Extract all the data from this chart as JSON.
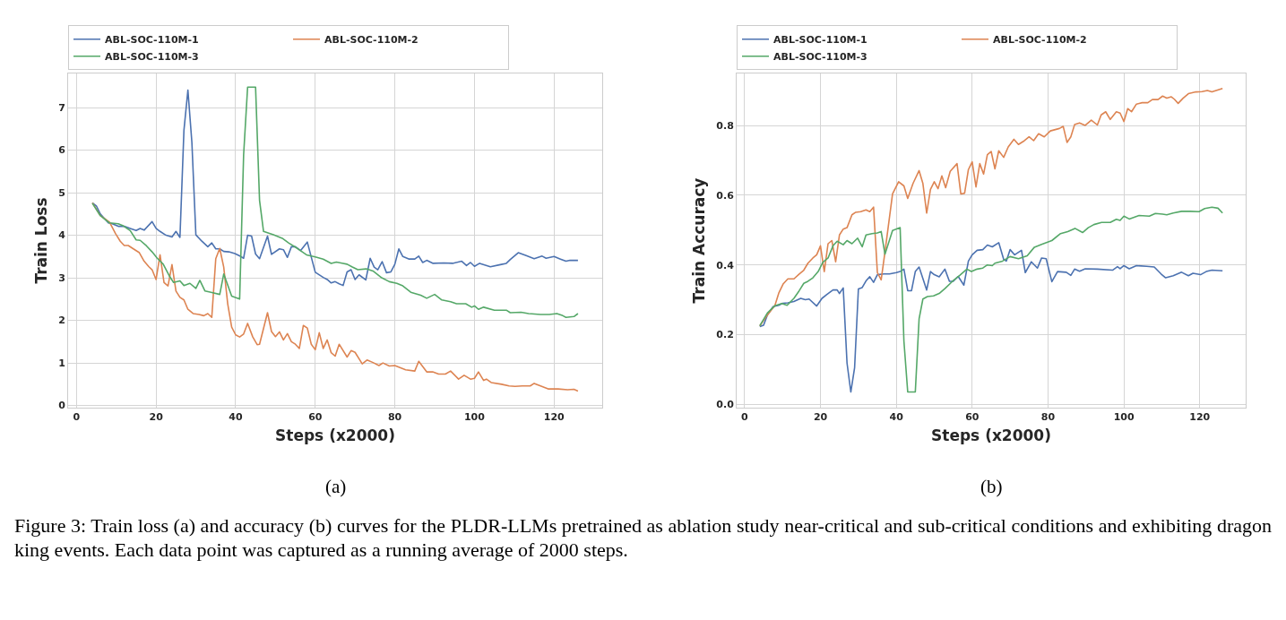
{
  "chart_data": [
    {
      "type": "line",
      "xlabel": "Steps (x2000)",
      "ylabel": "Train Loss",
      "xlim": [
        -2.1,
        132.1
      ],
      "ylim": [
        -0.05,
        7.8
      ],
      "xticks": [
        0,
        20,
        40,
        60,
        80,
        100,
        120
      ],
      "yticks": [
        0,
        1,
        2,
        3,
        4,
        5,
        6,
        7
      ],
      "grid": true,
      "legend": "top left",
      "line_style": "solid",
      "marker": "none",
      "annotations": [
        "(a)",
        "Figure 3: Train loss (a) and accuracy (b) curves for the PLDR-LLMs pretrained as ablation study near-critical and sub-critical conditions and exhibiting dragon king events. Each data point was captured as a running average of 2000 steps."
      ],
      "series": [
        {
          "name": "ABL-SOC-110M-1",
          "color": "#4c72b0",
          "x": [
            4,
            5,
            6,
            8,
            9,
            10.5,
            12,
            13.5,
            15,
            16,
            17,
            19,
            20,
            21,
            22.5,
            24,
            25,
            26,
            27,
            28,
            29,
            30,
            31.5,
            33,
            34,
            35,
            36,
            37,
            38.3,
            39.8,
            41.3,
            42,
            43,
            44,
            45,
            46,
            48,
            49,
            51,
            52,
            53,
            54,
            55,
            56.3,
            58,
            60,
            62,
            63,
            64,
            65,
            66,
            67,
            68,
            69,
            70,
            71,
            72.7,
            73.8,
            74.8,
            75.7,
            76.8,
            77.9,
            79,
            80,
            81,
            82,
            83.6,
            85,
            86,
            87,
            88,
            89.6,
            92.3,
            94.5,
            96.8,
            98,
            99,
            100,
            101.3,
            104,
            106.5,
            108,
            109,
            111,
            113,
            115,
            117,
            118,
            120,
            121.6,
            123,
            124,
            126
          ],
          "values": [
            4.76,
            4.69,
            4.5,
            4.29,
            4.27,
            4.21,
            4.21,
            4.16,
            4.11,
            4.16,
            4.12,
            4.32,
            4.16,
            4.09,
            4.0,
            3.96,
            4.09,
            3.95,
            6.46,
            7.41,
            6.18,
            4.01,
            3.86,
            3.73,
            3.82,
            3.68,
            3.68,
            3.62,
            3.61,
            3.57,
            3.5,
            3.46,
            4.0,
            3.98,
            3.56,
            3.45,
            3.98,
            3.55,
            3.68,
            3.66,
            3.48,
            3.73,
            3.73,
            3.64,
            3.84,
            3.13,
            3.01,
            2.96,
            2.88,
            2.91,
            2.86,
            2.82,
            3.14,
            3.19,
            2.96,
            3.07,
            2.95,
            3.46,
            3.25,
            3.19,
            3.38,
            3.12,
            3.14,
            3.32,
            3.68,
            3.5,
            3.44,
            3.44,
            3.51,
            3.36,
            3.41,
            3.34,
            3.35,
            3.34,
            3.39,
            3.29,
            3.36,
            3.27,
            3.34,
            3.26,
            3.31,
            3.34,
            3.43,
            3.59,
            3.52,
            3.45,
            3.51,
            3.46,
            3.5,
            3.44,
            3.39,
            3.41,
            3.41
          ]
        },
        {
          "name": "ABL-SOC-110M-2",
          "color": "#dd8452",
          "x": [
            4,
            6,
            8.3,
            9.8,
            11,
            12,
            13,
            14.3,
            15.8,
            17,
            18.2,
            19,
            20,
            21,
            22,
            23,
            24,
            25,
            26,
            27,
            28,
            29.3,
            30.8,
            32,
            33,
            34,
            35,
            36,
            37,
            38,
            39,
            40,
            41,
            42,
            43,
            44.3,
            45.4,
            46,
            48,
            49,
            50,
            51,
            52,
            53,
            54,
            55,
            56,
            57,
            58,
            59,
            60,
            61,
            62,
            63,
            64,
            65,
            66,
            68,
            69,
            70,
            71.8,
            73,
            74.5,
            76,
            77,
            78.6,
            80,
            82.7,
            85,
            86,
            88,
            89.5,
            91,
            92.7,
            94,
            96,
            97.4,
            99,
            100,
            101,
            102.3,
            103,
            104.2,
            106.8,
            108.7,
            110.2,
            112,
            114,
            115,
            116.6,
            118.5,
            121,
            123.4,
            125,
            126
          ],
          "values": [
            4.76,
            4.46,
            4.31,
            4.04,
            3.86,
            3.76,
            3.76,
            3.68,
            3.59,
            3.39,
            3.26,
            3.19,
            2.96,
            3.54,
            2.89,
            2.81,
            3.31,
            2.69,
            2.54,
            2.48,
            2.26,
            2.16,
            2.14,
            2.11,
            2.16,
            2.07,
            3.45,
            3.69,
            3.25,
            2.39,
            1.84,
            1.66,
            1.61,
            1.68,
            1.93,
            1.61,
            1.43,
            1.44,
            2.18,
            1.74,
            1.62,
            1.73,
            1.54,
            1.69,
            1.5,
            1.44,
            1.34,
            1.88,
            1.82,
            1.44,
            1.31,
            1.71,
            1.34,
            1.54,
            1.24,
            1.16,
            1.44,
            1.14,
            1.29,
            1.25,
            0.98,
            1.07,
            1.01,
            0.94,
            1.0,
            0.93,
            0.94,
            0.84,
            0.81,
            1.04,
            0.79,
            0.79,
            0.74,
            0.74,
            0.81,
            0.62,
            0.71,
            0.62,
            0.64,
            0.79,
            0.59,
            0.62,
            0.54,
            0.5,
            0.46,
            0.45,
            0.46,
            0.46,
            0.52,
            0.46,
            0.39,
            0.39,
            0.37,
            0.38,
            0.34
          ]
        },
        {
          "name": "ABL-SOC-110M-3",
          "color": "#55a868",
          "x": [
            4,
            6,
            8.3,
            10.5,
            11.6,
            13.5,
            15,
            16,
            17.6,
            19,
            20.3,
            21.8,
            23.3,
            24.4,
            26,
            27,
            28.5,
            30,
            31,
            32.3,
            33.8,
            36,
            37,
            39,
            41,
            42,
            43,
            45,
            46,
            47,
            49.5,
            51.7,
            53.3,
            55.5,
            57.8,
            60,
            62,
            64,
            65.3,
            67,
            68,
            69.2,
            70.7,
            72.8,
            74.5,
            76.7,
            78.6,
            80.5,
            82,
            84,
            86.5,
            88,
            90,
            91.8,
            94,
            95.5,
            97.8,
            99.3,
            100,
            101,
            102.3,
            105,
            108,
            109,
            111.7,
            113.6,
            116.6,
            118.8,
            120.7,
            122.2,
            123,
            125,
            126
          ],
          "values": [
            4.75,
            4.46,
            4.29,
            4.27,
            4.23,
            4.11,
            3.89,
            3.88,
            3.75,
            3.61,
            3.46,
            3.32,
            3.05,
            2.89,
            2.93,
            2.82,
            2.87,
            2.75,
            2.94,
            2.69,
            2.66,
            2.61,
            3.09,
            2.57,
            2.5,
            5.89,
            7.48,
            7.48,
            4.82,
            4.09,
            4.01,
            3.93,
            3.82,
            3.69,
            3.54,
            3.49,
            3.44,
            3.34,
            3.37,
            3.34,
            3.32,
            3.26,
            3.19,
            3.21,
            3.16,
            3.0,
            2.91,
            2.87,
            2.81,
            2.66,
            2.59,
            2.52,
            2.61,
            2.48,
            2.44,
            2.39,
            2.39,
            2.31,
            2.34,
            2.26,
            2.31,
            2.24,
            2.24,
            2.18,
            2.19,
            2.16,
            2.14,
            2.14,
            2.16,
            2.11,
            2.07,
            2.09,
            2.16
          ]
        }
      ]
    },
    {
      "type": "line",
      "xlabel": "Steps (x2000)",
      "ylabel": "Train Accuracy",
      "xlim": [
        -2.1,
        132.1
      ],
      "ylim": [
        -0.01,
        0.95
      ],
      "xticks": [
        0,
        20,
        40,
        60,
        80,
        100,
        120
      ],
      "yticks": [
        {
          "value": 0,
          "label": "0.0"
        },
        0.2,
        0.4,
        0.6,
        0.8
      ],
      "grid": true,
      "legend": "top left",
      "line_style": "solid",
      "marker": "none",
      "annotations": [
        "(b)"
      ],
      "series": [
        {
          "name": "ABL-SOC-110M-1",
          "color": "#4c72b0",
          "x": [
            4,
            5,
            6,
            7.5,
            9,
            10,
            11.4,
            13,
            14.8,
            16,
            17,
            19,
            20.4,
            21.7,
            23.3,
            24.4,
            25,
            26,
            27,
            28,
            29,
            30,
            31,
            32,
            33,
            34,
            35,
            36.7,
            38.2,
            40,
            41,
            42,
            43,
            44,
            45,
            46,
            48,
            49,
            50,
            51.3,
            52.8,
            54,
            55,
            56.3,
            57.8,
            59,
            60,
            61.3,
            62.8,
            64,
            65.3,
            67,
            68.3,
            69,
            70,
            71.2,
            73,
            74,
            75.6,
            77.2,
            78.3,
            79.5,
            81,
            82.5,
            84.8,
            86,
            87,
            88.3,
            89.8,
            93,
            97,
            98.3,
            99,
            100,
            101.4,
            103.3,
            106,
            108,
            109.8,
            111,
            113,
            115.2,
            117,
            118.2,
            120.2,
            121.7,
            123.2,
            126
          ],
          "values": [
            0.223,
            0.227,
            0.256,
            0.28,
            0.284,
            0.29,
            0.291,
            0.295,
            0.304,
            0.3,
            0.302,
            0.282,
            0.304,
            0.315,
            0.328,
            0.328,
            0.318,
            0.334,
            0.118,
            0.035,
            0.105,
            0.331,
            0.335,
            0.354,
            0.366,
            0.35,
            0.372,
            0.374,
            0.374,
            0.378,
            0.381,
            0.388,
            0.326,
            0.326,
            0.381,
            0.394,
            0.328,
            0.381,
            0.372,
            0.366,
            0.388,
            0.353,
            0.353,
            0.367,
            0.342,
            0.411,
            0.429,
            0.442,
            0.444,
            0.457,
            0.452,
            0.464,
            0.416,
            0.411,
            0.444,
            0.429,
            0.442,
            0.378,
            0.409,
            0.391,
            0.42,
            0.418,
            0.352,
            0.381,
            0.379,
            0.37,
            0.388,
            0.382,
            0.389,
            0.388,
            0.385,
            0.395,
            0.389,
            0.398,
            0.389,
            0.398,
            0.396,
            0.394,
            0.374,
            0.363,
            0.369,
            0.379,
            0.369,
            0.376,
            0.372,
            0.381,
            0.385,
            0.383
          ]
        },
        {
          "name": "ABL-SOC-110M-2",
          "color": "#dd8452",
          "x": [
            4,
            6,
            8,
            9,
            10.2,
            11.4,
            13,
            14.4,
            15.6,
            16.7,
            18,
            19,
            20,
            21,
            22,
            23,
            24,
            25,
            26,
            27,
            28.3,
            29.2,
            30.6,
            32,
            33,
            34,
            35,
            36,
            37,
            39,
            40.6,
            42,
            43,
            44.4,
            46,
            47,
            48,
            49,
            50,
            51,
            52,
            53,
            54.2,
            56,
            57,
            58,
            59,
            60,
            61,
            62,
            63,
            64,
            65,
            66,
            67,
            68.3,
            69.5,
            71,
            72.2,
            73.5,
            75,
            76.2,
            77.5,
            79,
            80.6,
            83,
            84,
            85,
            86,
            87,
            88.3,
            89.8,
            91.4,
            93,
            94,
            95.2,
            96.4,
            98,
            99,
            100,
            101,
            102,
            103.3,
            104.8,
            106.3,
            107.5,
            109,
            110.2,
            111.3,
            112.5,
            113.3,
            114.3,
            115.6,
            117,
            119,
            120.6,
            122,
            123.2,
            126
          ],
          "values": [
            0.225,
            0.256,
            0.284,
            0.319,
            0.346,
            0.36,
            0.36,
            0.374,
            0.385,
            0.405,
            0.42,
            0.429,
            0.455,
            0.381,
            0.461,
            0.47,
            0.409,
            0.486,
            0.503,
            0.507,
            0.544,
            0.551,
            0.553,
            0.558,
            0.553,
            0.566,
            0.378,
            0.357,
            0.437,
            0.604,
            0.639,
            0.627,
            0.591,
            0.634,
            0.671,
            0.634,
            0.549,
            0.617,
            0.639,
            0.619,
            0.656,
            0.622,
            0.669,
            0.691,
            0.604,
            0.606,
            0.674,
            0.696,
            0.624,
            0.691,
            0.661,
            0.717,
            0.726,
            0.676,
            0.728,
            0.709,
            0.739,
            0.761,
            0.746,
            0.755,
            0.768,
            0.757,
            0.777,
            0.768,
            0.785,
            0.792,
            0.798,
            0.752,
            0.768,
            0.803,
            0.808,
            0.801,
            0.816,
            0.802,
            0.831,
            0.84,
            0.818,
            0.84,
            0.836,
            0.812,
            0.849,
            0.84,
            0.862,
            0.866,
            0.866,
            0.875,
            0.875,
            0.885,
            0.879,
            0.883,
            0.876,
            0.864,
            0.879,
            0.892,
            0.897,
            0.898,
            0.901,
            0.897,
            0.907
          ]
        },
        {
          "name": "ABL-SOC-110M-3",
          "color": "#55a868",
          "x": [
            4,
            6,
            8,
            9.8,
            11.2,
            13,
            14.4,
            15.6,
            16.7,
            18,
            19.4,
            20.6,
            22,
            23.3,
            24.4,
            26,
            27,
            28.3,
            29.8,
            31,
            32,
            33.6,
            35,
            36,
            37,
            39,
            41,
            42,
            43,
            45,
            46,
            47,
            48.2,
            49.8,
            51.3,
            52.8,
            54.8,
            56.7,
            58.6,
            59.8,
            61.3,
            62.8,
            64,
            65.3,
            66,
            68,
            70,
            72.2,
            74.5,
            76.4,
            78.3,
            81,
            83.3,
            85.2,
            87.1,
            89.1,
            90.6,
            92.1,
            94.1,
            96.4,
            98,
            99,
            100,
            101.4,
            104,
            106.7,
            108.3,
            110.2,
            111.3,
            113,
            115.2,
            117.5,
            119.8,
            121.3,
            123.2,
            124.8,
            126
          ],
          "values": [
            0.225,
            0.262,
            0.283,
            0.289,
            0.284,
            0.304,
            0.326,
            0.347,
            0.353,
            0.363,
            0.381,
            0.407,
            0.42,
            0.455,
            0.468,
            0.458,
            0.47,
            0.461,
            0.477,
            0.452,
            0.486,
            0.49,
            0.492,
            0.496,
            0.431,
            0.499,
            0.507,
            0.181,
            0.035,
            0.035,
            0.245,
            0.302,
            0.309,
            0.311,
            0.318,
            0.332,
            0.353,
            0.37,
            0.388,
            0.381,
            0.388,
            0.391,
            0.4,
            0.398,
            0.405,
            0.411,
            0.424,
            0.418,
            0.426,
            0.451,
            0.459,
            0.47,
            0.49,
            0.496,
            0.505,
            0.493,
            0.507,
            0.516,
            0.522,
            0.522,
            0.531,
            0.528,
            0.54,
            0.532,
            0.542,
            0.54,
            0.548,
            0.546,
            0.544,
            0.549,
            0.554,
            0.554,
            0.553,
            0.562,
            0.566,
            0.563,
            0.549
          ]
        }
      ]
    }
  ]
}
